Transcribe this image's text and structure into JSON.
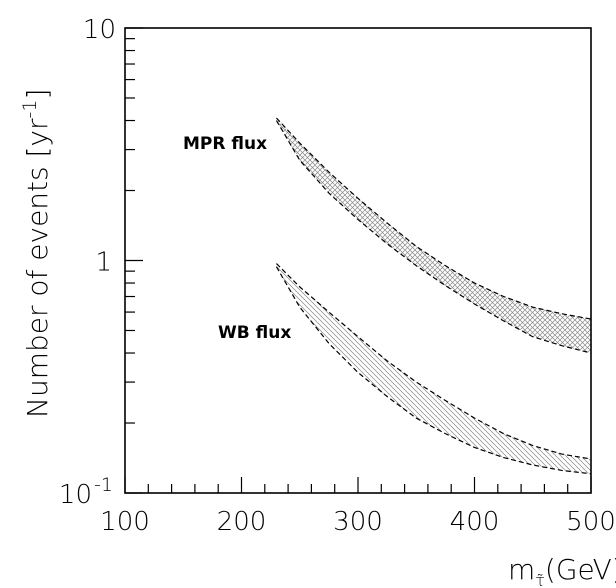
{
  "chart_data": {
    "type": "area",
    "title": "",
    "xlabel": "m",
    "xlabel_subscript": "τ̃",
    "xlabel_unit": "(GeV)",
    "ylabel": "Number of events [yr",
    "ylabel_exp": "-1",
    "ylabel_close": "]",
    "xlim": [
      100,
      500
    ],
    "ylim": [
      0.1,
      10
    ],
    "yscale": "log",
    "grid": false,
    "x_ticks": [
      {
        "value": 100,
        "label": "100"
      },
      {
        "value": 200,
        "label": "200"
      },
      {
        "value": 300,
        "label": "300"
      },
      {
        "value": 400,
        "label": "400"
      },
      {
        "value": 500,
        "label": "500"
      }
    ],
    "y_ticks": [
      {
        "value": 0.1,
        "base": "10",
        "exp": "-1"
      },
      {
        "value": 1,
        "base": "1",
        "exp": ""
      },
      {
        "value": 10,
        "base": "10",
        "exp": ""
      }
    ],
    "series": [
      {
        "name": "MPR flux",
        "hatch": "crosshatch",
        "x": [
          230,
          250,
          275,
          300,
          325,
          350,
          375,
          400,
          425,
          450,
          475,
          500
        ],
        "upper": [
          4.1,
          3.2,
          2.4,
          1.85,
          1.45,
          1.15,
          0.95,
          0.8,
          0.7,
          0.63,
          0.59,
          0.56
        ],
        "lower": [
          4.0,
          2.7,
          1.95,
          1.5,
          1.18,
          0.95,
          0.78,
          0.65,
          0.55,
          0.47,
          0.43,
          0.4
        ]
      },
      {
        "name": "WB flux",
        "hatch": "diagonal",
        "x": [
          230,
          250,
          275,
          300,
          325,
          350,
          375,
          400,
          425,
          450,
          475,
          500
        ],
        "upper": [
          0.97,
          0.77,
          0.6,
          0.47,
          0.37,
          0.3,
          0.25,
          0.21,
          0.18,
          0.16,
          0.147,
          0.14
        ],
        "lower": [
          0.94,
          0.63,
          0.44,
          0.33,
          0.26,
          0.21,
          0.18,
          0.157,
          0.142,
          0.132,
          0.125,
          0.121
        ]
      }
    ]
  },
  "colors": {
    "axis": "#000000",
    "hatch": "#888888",
    "background": "#ffffff"
  }
}
